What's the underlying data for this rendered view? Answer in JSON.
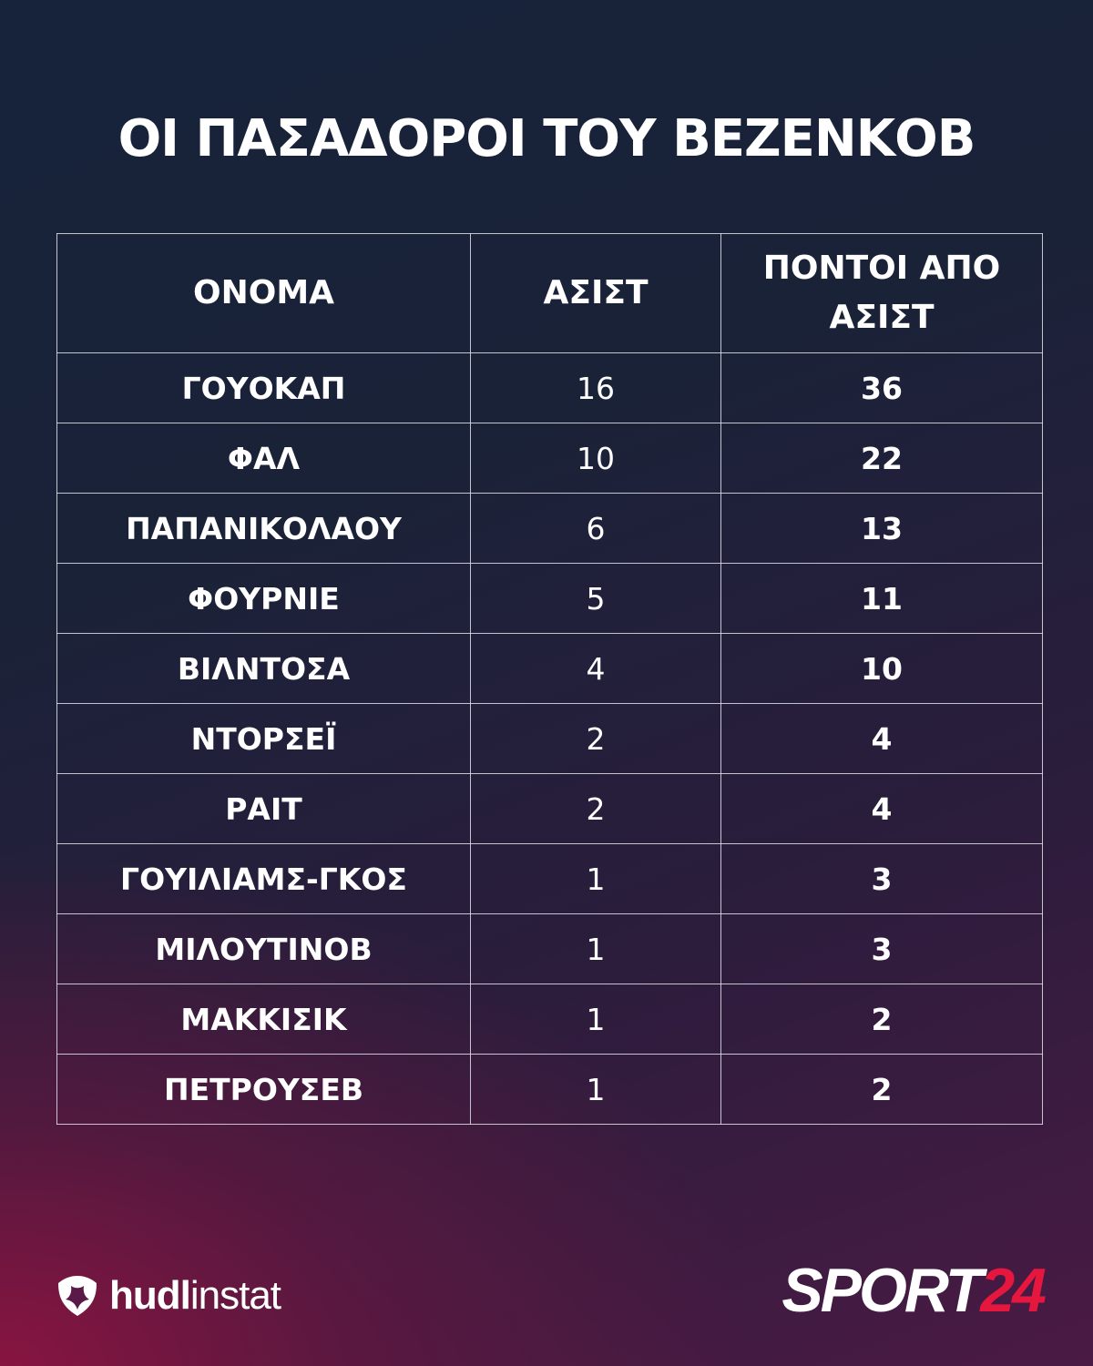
{
  "title": "ΟΙ ΠΑΣΑΔΟΡΟΙ ΤΟΥ ΒΕΖΕΝΚΟΒ",
  "table": {
    "headers": {
      "name": "ΟΝΟΜΑ",
      "assists": "ΑΣΙΣΤ",
      "points_line1": "ΠΟΝΤΟΙ ΑΠΟ",
      "points_line2": "ΑΣΙΣΤ"
    },
    "rows": [
      {
        "name": "ΓΟΥΟΚΑΠ",
        "assists": "16",
        "points": "36"
      },
      {
        "name": "ΦΑΛ",
        "assists": "10",
        "points": "22"
      },
      {
        "name": "ΠΑΠΑΝΙΚΟΛΑΟΥ",
        "assists": "6",
        "points": "13"
      },
      {
        "name": "ΦΟΥΡΝΙΕ",
        "assists": "5",
        "points": "11"
      },
      {
        "name": "ΒΙΛΝΤΟΣΑ",
        "assists": "4",
        "points": "10"
      },
      {
        "name": "ΝΤΟΡΣΕΪ",
        "assists": "2",
        "points": "4"
      },
      {
        "name": "ΡΑΙΤ",
        "assists": "2",
        "points": "4"
      },
      {
        "name": "ΓΟΥΙΛΙΑΜΣ-ΓΚΟΣ",
        "assists": "1",
        "points": "3"
      },
      {
        "name": "ΜΙΛΟΥΤΙΝΟΒ",
        "assists": "1",
        "points": "3"
      },
      {
        "name": "ΜΑΚΚΙΣΙΚ",
        "assists": "1",
        "points": "2"
      },
      {
        "name": "ΠΕΤΡΟΥΣΕΒ",
        "assists": "1",
        "points": "2"
      }
    ]
  },
  "footer": {
    "hudl_logo": {
      "bold": "hudl",
      "light": "instat",
      "icon": "hudl-shield-icon"
    },
    "sport24_logo": {
      "word": "SPORT",
      "number": "24"
    }
  },
  "colors": {
    "background_top": "#16233a",
    "background_bottom_left": "#8c1441",
    "text": "#ffffff",
    "border": "#e1e1eb",
    "sport24_accent": "#e5173f"
  }
}
